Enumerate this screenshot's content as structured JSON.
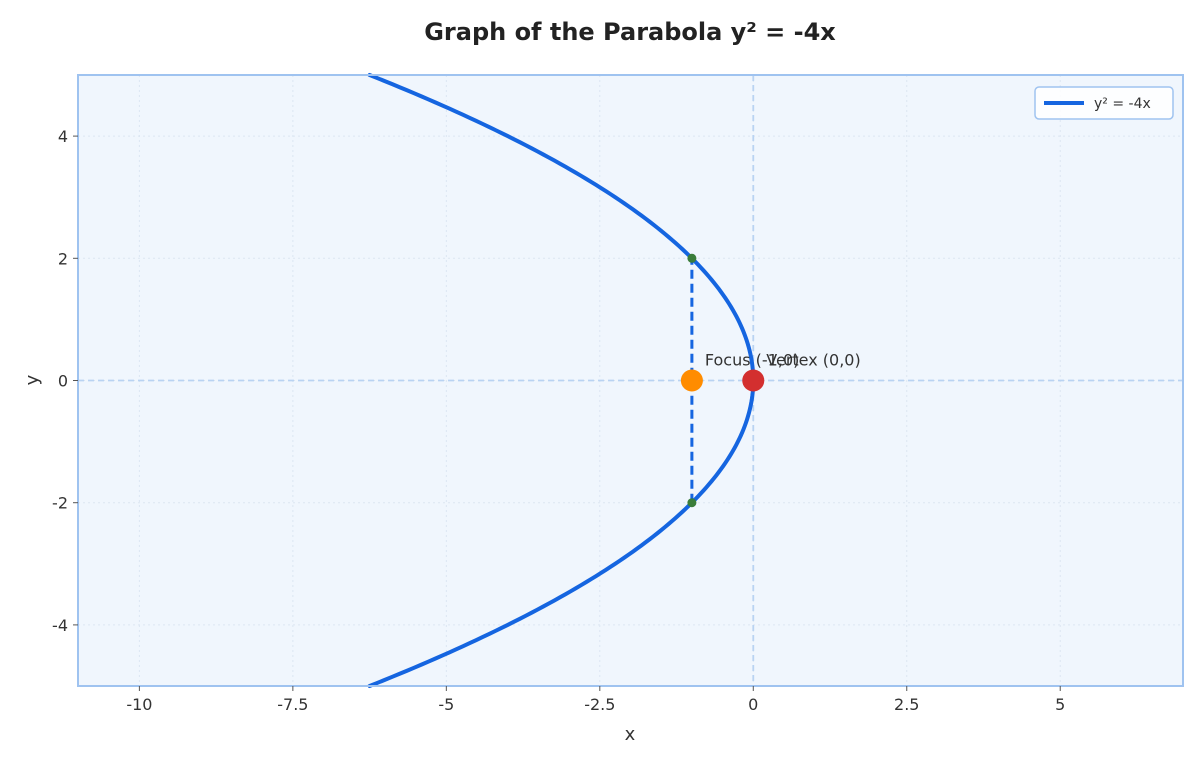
{
  "chart_data": {
    "type": "line",
    "title": "Graph of the Parabola y² = -4x",
    "xlabel": "x",
    "ylabel": "y",
    "xlim": [
      -11,
      7
    ],
    "ylim": [
      -5,
      5
    ],
    "x_ticks": [
      -10,
      -7.5,
      -5,
      -2.5,
      0,
      2.5,
      5
    ],
    "x_tick_labels": [
      "-10",
      "-7.5",
      "-5",
      "-2.5",
      "0",
      "2.5",
      "5"
    ],
    "y_ticks": [
      -4,
      -2,
      0,
      2,
      4
    ],
    "y_tick_labels": [
      "-4",
      "-2",
      "0",
      "2",
      "4"
    ],
    "grid": true,
    "legend_position": "top-right",
    "series": [
      {
        "name": "y² = -4x",
        "equation": "y^2 = -4x",
        "y_range": [
          -5,
          5
        ],
        "color": "#1565e0"
      }
    ],
    "points": [
      {
        "label": "Focus (-1,0)",
        "x": -1,
        "y": 0,
        "color": "#ff8c00"
      },
      {
        "label": "Vertex (0,0)",
        "x": 0,
        "y": 0,
        "color": "#d32f2f"
      }
    ],
    "latus_rectum": {
      "x": -1,
      "y_from": -2,
      "y_to": 2,
      "line_color": "#1565e0",
      "endpoint_color": "#3a7d3a"
    },
    "colors": {
      "plot_background": "#f0f6fd",
      "frame": "#9fc3f0",
      "grid": "#dce6f2",
      "zero_lines": "#b9d3f2"
    }
  }
}
